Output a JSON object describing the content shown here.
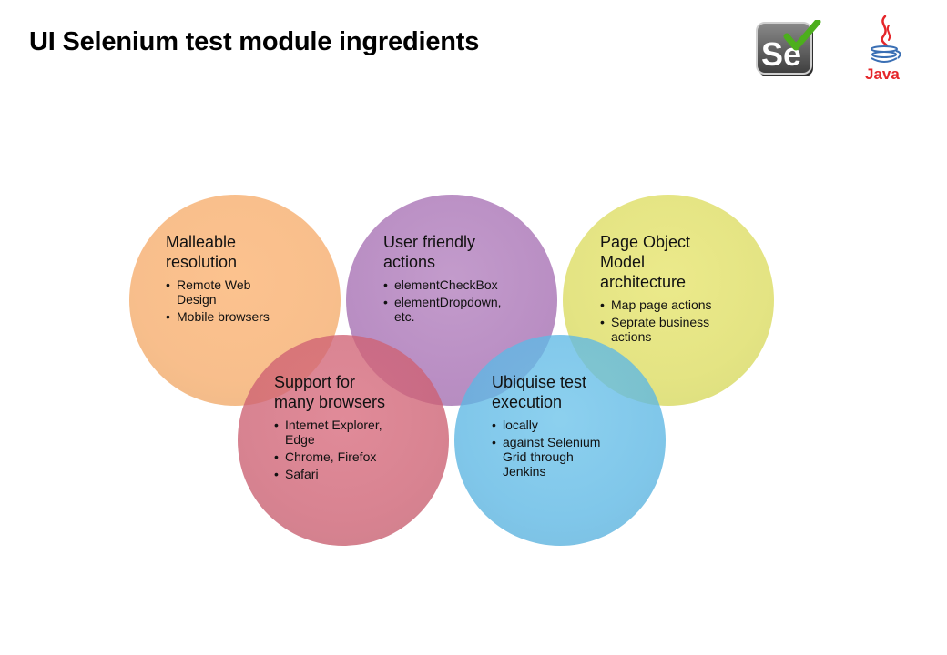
{
  "title": "UI Selenium test module ingredients",
  "logos": {
    "selenium": {
      "text": "Se",
      "colors": {
        "body": "#5a5a5a",
        "check": "#4caf1c"
      }
    },
    "java": {
      "text": "Java",
      "colors": {
        "text": "#e5262a",
        "cup": "#3a6fb4",
        "steam": "#e5262a"
      }
    }
  },
  "circles": [
    {
      "id": "malleable",
      "color": "#f6ac6b",
      "heading": "Malleable\nresolution",
      "bullets": [
        "Remote Web\nDesign",
        "Mobile browsers"
      ]
    },
    {
      "id": "user-friendly",
      "color": "#a66fb3",
      "heading": "User friendly\nactions",
      "bullets": [
        "elementCheckBox",
        "elementDropdown,\netc."
      ]
    },
    {
      "id": "page-object",
      "color": "#dcdc60",
      "heading": "Page Object\nModel\narchitecture",
      "bullets": [
        "Map page actions",
        "Seprate business\nactions"
      ]
    },
    {
      "id": "support",
      "color": "#cd6072",
      "heading": "Support for\nmany browsers",
      "bullets": [
        "Internet  Explorer,\nEdge",
        "Chrome, Firefox",
        "Safari"
      ]
    },
    {
      "id": "ubiquise",
      "color": "#5cb7e4",
      "heading": "Ubiquise test\nexecution",
      "bullets": [
        "locally",
        "against Selenium\nGrid through\nJenkins"
      ]
    }
  ]
}
